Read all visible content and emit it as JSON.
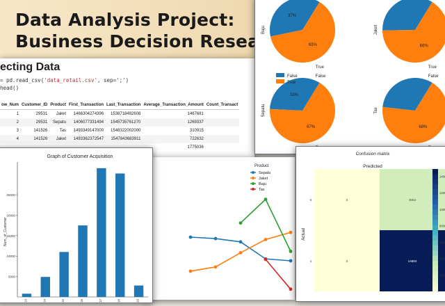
{
  "banner": {
    "line1": "Data Analysis Project:",
    "line2": "Business Decision Research"
  },
  "data_panel": {
    "section_title": "ecting Data",
    "code_line1_prefix": "= pd.read_csv(",
    "code_line1_arg": "'data_retail.csv'",
    "code_line1_suffix": ", sep=';')",
    "code_line2": "head()",
    "columns": [
      "ow_Num",
      "Customer_ID",
      "Product",
      "First_Transaction",
      "Last_Transaction",
      "Average_Transaction_Amount",
      "Count_Transact"
    ],
    "rows": [
      [
        "1",
        "29531",
        "Jaket",
        "1466304274396",
        "1538718482608",
        "1467681",
        ""
      ],
      [
        "2",
        "29531",
        "Sepatu",
        "1406077331494",
        "1545735761270",
        "1269337",
        ""
      ],
      [
        "3",
        "141526",
        "Tas",
        "1493349147000",
        "1548322002000",
        "310915",
        ""
      ],
      [
        "4",
        "141526",
        "Jaket",
        "1493362372547",
        "1547843683911",
        "722632",
        ""
      ],
      [
        "",
        "",
        "",
        "",
        "",
        "1775036",
        ""
      ]
    ]
  },
  "pie_panel": {
    "legend": [
      "False",
      "True"
    ],
    "colors": {
      "false": "#1f77b4",
      "true": "#ff7f0e"
    },
    "pies": [
      {
        "ylabel": "Baju",
        "small_pct": "37%",
        "large_pct": "63%",
        "xlabel": "True"
      },
      {
        "ylabel": "Jaket",
        "small_pct": "",
        "large_pct": "66%",
        "xlabel": "True"
      },
      {
        "ylabel": "Sepatu",
        "small_pct": "33%",
        "large_pct": "67%",
        "xlabel": "True",
        "top_label": "False"
      },
      {
        "ylabel": "Tas",
        "small_pct": "",
        "large_pct": "68%",
        "xlabel": "True",
        "top_label": "False"
      }
    ]
  },
  "bar_panel": {
    "title": "Graph of Customer Acquisition",
    "ylabel": "Num_of_Customer",
    "yticks": [
      "25000",
      "20000",
      "15000",
      "10000",
      "5000"
    ],
    "xticks": [
      "2013",
      "2014",
      "2015",
      "2016",
      "2017",
      "2018",
      "2019"
    ],
    "color": "#1f77b4"
  },
  "line_panel": {
    "legend_title": "Product",
    "colors": {
      "Sepatu": "#1f77b4",
      "Jaket": "#ff7f0e",
      "Baju": "#2ca02c",
      "Tas": "#d62728"
    }
  },
  "cm_panel": {
    "title": "Confusion matrix",
    "xlabel": "Predicted",
    "ylabel": "Actual",
    "yticks": [
      "0",
      "1"
    ],
    "cells": [
      "0",
      "3063",
      "0",
      "14884"
    ],
    "cbar_ticks": [
      "14000",
      "12000",
      "10000",
      "8000",
      "6000",
      "4000",
      "2000"
    ]
  },
  "chart_data": [
    {
      "type": "pie",
      "title": "",
      "series": [
        {
          "name": "Baju",
          "labels": [
            "False",
            "True"
          ],
          "values": [
            37,
            63
          ]
        },
        {
          "name": "Jaket",
          "labels": [
            "False",
            "True"
          ],
          "values": [
            34,
            66
          ]
        },
        {
          "name": "Sepatu",
          "labels": [
            "False",
            "True"
          ],
          "values": [
            33,
            67
          ]
        },
        {
          "name": "Tas",
          "labels": [
            "False",
            "True"
          ],
          "values": [
            32,
            68
          ]
        }
      ]
    },
    {
      "type": "bar",
      "title": "Graph of Customer Acquisition",
      "xlabel": "",
      "ylabel": "Num_of_Customer",
      "categories": [
        "2013",
        "2014",
        "2015",
        "2016",
        "2017",
        "2018",
        "2019"
      ],
      "values": [
        800,
        4900,
        11000,
        17500,
        31500,
        30200,
        2800
      ],
      "ylim": [
        0,
        33000
      ]
    },
    {
      "type": "line",
      "title": "",
      "legend_title": "Product",
      "legend": [
        "Sepatu",
        "Jaket",
        "Baju",
        "Tas"
      ],
      "x": [
        0,
        1,
        2,
        3,
        4,
        5,
        6
      ],
      "series": [
        {
          "name": "Sepatu",
          "values": [
            null,
            1.25,
            1.22,
            1.15,
            0.79,
            0.75,
            null
          ]
        },
        {
          "name": "Jaket",
          "values": [
            null,
            0.53,
            0.62,
            0.92,
            1.2,
            1.35,
            null
          ]
        },
        {
          "name": "Baju",
          "values": [
            null,
            null,
            null,
            1.55,
            2.05,
            0.95,
            null
          ]
        },
        {
          "name": "Tas",
          "values": [
            null,
            null,
            null,
            null,
            0.78,
            0.15,
            null
          ]
        }
      ]
    },
    {
      "type": "heatmap",
      "title": "Confusion matrix",
      "xlabel": "Predicted",
      "ylabel": "Actual",
      "rows": [
        "0",
        "1"
      ],
      "values": [
        [
          0,
          3063
        ],
        [
          0,
          14884
        ]
      ]
    }
  ]
}
